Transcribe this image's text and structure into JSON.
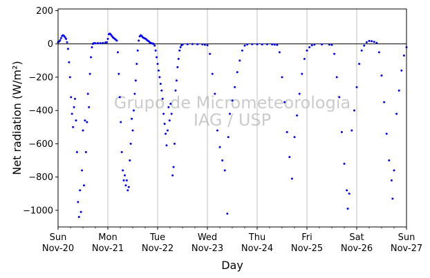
{
  "chart_data": {
    "type": "scatter",
    "xlabel": "Day",
    "ylabel": "Net radiation (W/m²)",
    "ylim": [
      -1100,
      210
    ],
    "yticks": [
      200,
      0,
      -200,
      -400,
      -600,
      -800,
      -1000
    ],
    "xlim": [
      0,
      7
    ],
    "x_unit": "days since Sun Nov-20",
    "xticks": [
      {
        "x": 0,
        "day": "Sun",
        "date": "Nov-20"
      },
      {
        "x": 1,
        "day": "Mon",
        "date": "Nov-21"
      },
      {
        "x": 2,
        "day": "Tue",
        "date": "Nov-22"
      },
      {
        "x": 3,
        "day": "Wed",
        "date": "Nov-23"
      },
      {
        "x": 4,
        "day": "Thu",
        "date": "Nov-24"
      },
      {
        "x": 5,
        "day": "Fri",
        "date": "Nov-25"
      },
      {
        "x": 6,
        "day": "Sat",
        "date": "Nov-26"
      },
      {
        "x": 7,
        "day": "Sun",
        "date": "Nov-27"
      }
    ],
    "grid": "vertical at day boundaries",
    "zero_line": true,
    "watermark": [
      "Grupo de Micrometeorologia",
      "IAG / USP"
    ],
    "series": [
      {
        "color": "#0000ff",
        "points": [
          [
            0.0,
            10
          ],
          [
            0.02,
            14
          ],
          [
            0.04,
            22
          ],
          [
            0.06,
            35
          ],
          [
            0.08,
            48
          ],
          [
            0.1,
            52
          ],
          [
            0.12,
            48
          ],
          [
            0.14,
            40
          ],
          [
            0.16,
            30
          ],
          [
            0.18,
            10
          ],
          [
            0.2,
            -30
          ],
          [
            0.22,
            -110
          ],
          [
            0.24,
            -200
          ],
          [
            0.26,
            -320
          ],
          [
            0.28,
            -420
          ],
          [
            0.3,
            -500
          ],
          [
            0.32,
            -380
          ],
          [
            0.34,
            -330
          ],
          [
            0.36,
            -460
          ],
          [
            0.38,
            -650
          ],
          [
            0.4,
            -950
          ],
          [
            0.42,
            -1040
          ],
          [
            0.44,
            -880
          ],
          [
            0.46,
            -1010
          ],
          [
            0.48,
            -760
          ],
          [
            0.5,
            -520
          ],
          [
            0.52,
            -850
          ],
          [
            0.54,
            -460
          ],
          [
            0.56,
            -650
          ],
          [
            0.58,
            -470
          ],
          [
            0.6,
            -300
          ],
          [
            0.62,
            -380
          ],
          [
            0.64,
            -180
          ],
          [
            0.66,
            -80
          ],
          [
            0.68,
            -20
          ],
          [
            0.7,
            0
          ],
          [
            0.72,
            5
          ],
          [
            0.75,
            4
          ],
          [
            0.8,
            5
          ],
          [
            0.85,
            5
          ],
          [
            0.9,
            6
          ],
          [
            0.95,
            8
          ],
          [
            0.98,
            10
          ],
          [
            1.0,
            30
          ],
          [
            1.02,
            58
          ],
          [
            1.04,
            62
          ],
          [
            1.06,
            56
          ],
          [
            1.08,
            48
          ],
          [
            1.1,
            40
          ],
          [
            1.12,
            35
          ],
          [
            1.14,
            30
          ],
          [
            1.16,
            25
          ],
          [
            1.18,
            20
          ],
          [
            1.2,
            -50
          ],
          [
            1.22,
            -180
          ],
          [
            1.24,
            -320
          ],
          [
            1.26,
            -470
          ],
          [
            1.28,
            -650
          ],
          [
            1.3,
            -760
          ],
          [
            1.32,
            -820
          ],
          [
            1.34,
            -790
          ],
          [
            1.36,
            -850
          ],
          [
            1.38,
            -820
          ],
          [
            1.4,
            -880
          ],
          [
            1.42,
            -860
          ],
          [
            1.44,
            -700
          ],
          [
            1.46,
            -600
          ],
          [
            1.48,
            -450
          ],
          [
            1.5,
            -520
          ],
          [
            1.52,
            -400
          ],
          [
            1.54,
            -300
          ],
          [
            1.56,
            -220
          ],
          [
            1.58,
            -120
          ],
          [
            1.6,
            -40
          ],
          [
            1.62,
            20
          ],
          [
            1.64,
            45
          ],
          [
            1.66,
            52
          ],
          [
            1.68,
            48
          ],
          [
            1.7,
            40
          ],
          [
            1.72,
            36
          ],
          [
            1.74,
            34
          ],
          [
            1.76,
            30
          ],
          [
            1.78,
            25
          ],
          [
            1.8,
            20
          ],
          [
            1.82,
            16
          ],
          [
            1.84,
            10
          ],
          [
            1.86,
            6
          ],
          [
            1.88,
            4
          ],
          [
            1.9,
            2
          ],
          [
            1.92,
            0
          ],
          [
            1.94,
            -10
          ],
          [
            1.96,
            -40
          ],
          [
            1.98,
            -80
          ],
          [
            2.0,
            -120
          ],
          [
            2.02,
            -160
          ],
          [
            2.04,
            -200
          ],
          [
            2.06,
            -240
          ],
          [
            2.08,
            -280
          ],
          [
            2.1,
            -330
          ],
          [
            2.12,
            -420
          ],
          [
            2.14,
            -480
          ],
          [
            2.16,
            -540
          ],
          [
            2.18,
            -610
          ],
          [
            2.2,
            -520
          ],
          [
            2.22,
            -380
          ],
          [
            2.24,
            -460
          ],
          [
            2.26,
            -360
          ],
          [
            2.28,
            -420
          ],
          [
            2.3,
            -790
          ],
          [
            2.32,
            -740
          ],
          [
            2.34,
            -600
          ],
          [
            2.36,
            -280
          ],
          [
            2.38,
            -220
          ],
          [
            2.4,
            -140
          ],
          [
            2.42,
            -90
          ],
          [
            2.44,
            -40
          ],
          [
            2.46,
            -20
          ],
          [
            2.48,
            -8
          ],
          [
            2.5,
            -4
          ],
          [
            2.6,
            -2
          ],
          [
            2.7,
            -1
          ],
          [
            2.8,
            -2
          ],
          [
            2.9,
            -3
          ],
          [
            2.95,
            -5
          ],
          [
            3.0,
            -8
          ],
          [
            3.05,
            -60
          ],
          [
            3.1,
            -180
          ],
          [
            3.15,
            -300
          ],
          [
            3.2,
            -520
          ],
          [
            3.25,
            -620
          ],
          [
            3.3,
            -700
          ],
          [
            3.35,
            -760
          ],
          [
            3.4,
            -1020
          ],
          [
            3.42,
            -560
          ],
          [
            3.45,
            -420
          ],
          [
            3.5,
            -340
          ],
          [
            3.55,
            -260
          ],
          [
            3.6,
            -170
          ],
          [
            3.65,
            -100
          ],
          [
            3.7,
            -40
          ],
          [
            3.75,
            -10
          ],
          [
            3.8,
            -3
          ],
          [
            3.9,
            -2
          ],
          [
            4.0,
            -2
          ],
          [
            4.1,
            -3
          ],
          [
            4.2,
            -2
          ],
          [
            4.3,
            -3
          ],
          [
            4.35,
            -4
          ],
          [
            4.4,
            -6
          ],
          [
            4.45,
            -50
          ],
          [
            4.5,
            -200
          ],
          [
            4.55,
            -350
          ],
          [
            4.6,
            -530
          ],
          [
            4.65,
            -680
          ],
          [
            4.7,
            -810
          ],
          [
            4.75,
            -560
          ],
          [
            4.8,
            -430
          ],
          [
            4.85,
            -300
          ],
          [
            4.9,
            -180
          ],
          [
            4.95,
            -90
          ],
          [
            5.0,
            -40
          ],
          [
            5.05,
            -20
          ],
          [
            5.1,
            -8
          ],
          [
            5.15,
            -4
          ],
          [
            5.3,
            -3
          ],
          [
            5.45,
            -4
          ],
          [
            5.5,
            -6
          ],
          [
            5.55,
            -60
          ],
          [
            5.6,
            -200
          ],
          [
            5.65,
            -320
          ],
          [
            5.7,
            -530
          ],
          [
            5.75,
            -720
          ],
          [
            5.8,
            -880
          ],
          [
            5.82,
            -990
          ],
          [
            5.85,
            -900
          ],
          [
            5.9,
            -520
          ],
          [
            5.95,
            -400
          ],
          [
            6.0,
            -260
          ],
          [
            6.05,
            -120
          ],
          [
            6.1,
            -40
          ],
          [
            6.15,
            -10
          ],
          [
            6.2,
            10
          ],
          [
            6.25,
            18
          ],
          [
            6.3,
            16
          ],
          [
            6.35,
            12
          ],
          [
            6.4,
            6
          ],
          [
            6.45,
            -50
          ],
          [
            6.5,
            -190
          ],
          [
            6.55,
            -350
          ],
          [
            6.6,
            -540
          ],
          [
            6.65,
            -700
          ],
          [
            6.7,
            -820
          ],
          [
            6.72,
            -930
          ],
          [
            6.75,
            -760
          ],
          [
            6.8,
            -420
          ],
          [
            6.85,
            -280
          ],
          [
            6.9,
            -160
          ],
          [
            6.95,
            -70
          ],
          [
            7.0,
            -20
          ]
        ]
      }
    ]
  }
}
